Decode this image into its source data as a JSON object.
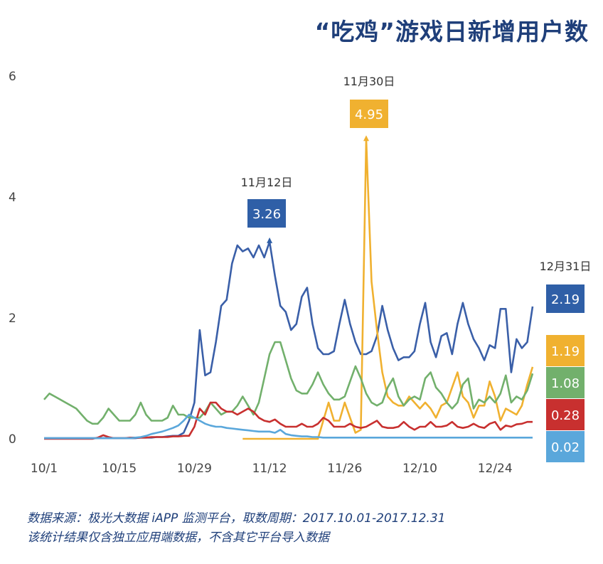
{
  "chart_data": {
    "type": "line",
    "title": "“吃鸡”游戏日新增用户数",
    "ylim": [
      0,
      6
    ],
    "yticks": [
      "0",
      "2",
      "4",
      "6"
    ],
    "xticks": [
      "10/1",
      "10/15",
      "10/29",
      "11/12",
      "11/26",
      "12/10",
      "12/24"
    ],
    "grid": false,
    "x_range": [
      "10/1",
      "12/31"
    ],
    "series": [
      {
        "color": "#3a5fa8",
        "start_index": 0,
        "values": [
          0.01,
          0.01,
          0.01,
          0.01,
          0.01,
          0.01,
          0.01,
          0.01,
          0.01,
          0.01,
          0.01,
          0.01,
          0.01,
          0.01,
          0.01,
          0.01,
          0.01,
          0.01,
          0.02,
          0.02,
          0.02,
          0.03,
          0.03,
          0.04,
          0.05,
          0.05,
          0.1,
          0.3,
          0.6,
          1.8,
          1.05,
          1.1,
          1.6,
          2.2,
          2.3,
          2.9,
          3.2,
          3.1,
          3.15,
          3.0,
          3.2,
          3.0,
          3.26,
          2.7,
          2.2,
          2.1,
          1.8,
          1.9,
          2.35,
          2.5,
          1.9,
          1.5,
          1.4,
          1.4,
          1.45,
          1.9,
          2.3,
          1.9,
          1.6,
          1.4,
          1.4,
          1.45,
          1.7,
          2.2,
          1.8,
          1.5,
          1.3,
          1.35,
          1.35,
          1.45,
          1.9,
          2.25,
          1.6,
          1.35,
          1.7,
          1.75,
          1.4,
          1.9,
          2.25,
          1.9,
          1.65,
          1.5,
          1.3,
          1.55,
          1.5,
          2.15,
          2.15,
          1.1,
          1.65,
          1.5,
          1.6,
          2.19
        ]
      },
      {
        "color": "#f0b130",
        "start_index": 37,
        "values": [
          0,
          0,
          0,
          0,
          0,
          0,
          0,
          0,
          0,
          0,
          0,
          0,
          0,
          0,
          0,
          0.3,
          0.6,
          0.3,
          0.3,
          0.6,
          0.35,
          0.1,
          0.15,
          4.95,
          2.6,
          1.8,
          1.1,
          0.7,
          0.6,
          0.55,
          0.55,
          0.7,
          0.6,
          0.5,
          0.6,
          0.5,
          0.35,
          0.55,
          0.6,
          0.85,
          1.1,
          0.7,
          0.6,
          0.35,
          0.55,
          0.55,
          0.95,
          0.7,
          0.3,
          0.5,
          0.45,
          0.4,
          0.55,
          0.9,
          1.19
        ]
      },
      {
        "color": "#72b06c",
        "start_index": 0,
        "values": [
          0.65,
          0.75,
          0.7,
          0.65,
          0.6,
          0.55,
          0.5,
          0.4,
          0.3,
          0.25,
          0.25,
          0.35,
          0.5,
          0.4,
          0.3,
          0.3,
          0.3,
          0.4,
          0.6,
          0.4,
          0.3,
          0.3,
          0.3,
          0.35,
          0.55,
          0.4,
          0.4,
          0.35,
          0.35,
          0.35,
          0.45,
          0.6,
          0.5,
          0.4,
          0.45,
          0.45,
          0.55,
          0.7,
          0.55,
          0.4,
          0.6,
          1.0,
          1.4,
          1.6,
          1.6,
          1.3,
          1.0,
          0.8,
          0.75,
          0.75,
          0.9,
          1.1,
          0.9,
          0.75,
          0.65,
          0.65,
          0.7,
          0.95,
          1.2,
          1.0,
          0.75,
          0.6,
          0.55,
          0.6,
          0.85,
          1.0,
          0.7,
          0.55,
          0.65,
          0.7,
          0.65,
          1.0,
          1.1,
          0.85,
          0.75,
          0.6,
          0.5,
          0.6,
          0.9,
          1.0,
          0.5,
          0.65,
          0.6,
          0.7,
          0.6,
          0.75,
          1.05,
          0.6,
          0.7,
          0.65,
          0.8,
          1.08
        ]
      },
      {
        "color": "#c8302f",
        "start_index": 0,
        "values": [
          0,
          0,
          0,
          0,
          0,
          0,
          0,
          0,
          0,
          0,
          0.02,
          0.06,
          0.03,
          0.01,
          0.01,
          0.01,
          0.02,
          0.02,
          0.02,
          0.02,
          0.03,
          0.03,
          0.03,
          0.03,
          0.04,
          0.04,
          0.05,
          0.05,
          0.2,
          0.5,
          0.4,
          0.6,
          0.6,
          0.5,
          0.45,
          0.45,
          0.4,
          0.45,
          0.5,
          0.45,
          0.35,
          0.3,
          0.28,
          0.32,
          0.25,
          0.2,
          0.2,
          0.2,
          0.25,
          0.2,
          0.2,
          0.25,
          0.35,
          0.3,
          0.2,
          0.2,
          0.2,
          0.25,
          0.2,
          0.18,
          0.2,
          0.25,
          0.3,
          0.2,
          0.18,
          0.18,
          0.2,
          0.28,
          0.2,
          0.15,
          0.2,
          0.2,
          0.28,
          0.2,
          0.2,
          0.22,
          0.28,
          0.2,
          0.18,
          0.2,
          0.25,
          0.2,
          0.18,
          0.25,
          0.28,
          0.15,
          0.22,
          0.2,
          0.24,
          0.25,
          0.28,
          0.28
        ]
      },
      {
        "color": "#5aa7db",
        "start_index": 0,
        "values": [
          0.01,
          0.01,
          0.01,
          0.01,
          0.01,
          0.01,
          0.01,
          0.01,
          0.01,
          0.01,
          0.01,
          0.01,
          0.01,
          0.01,
          0.01,
          0.01,
          0.01,
          0.02,
          0.03,
          0.05,
          0.08,
          0.1,
          0.12,
          0.15,
          0.18,
          0.22,
          0.3,
          0.4,
          0.35,
          0.3,
          0.25,
          0.22,
          0.2,
          0.2,
          0.18,
          0.17,
          0.16,
          0.15,
          0.14,
          0.13,
          0.12,
          0.12,
          0.12,
          0.1,
          0.15,
          0.08,
          0.06,
          0.05,
          0.04,
          0.04,
          0.03,
          0.03,
          0.02,
          0.02,
          0.02,
          0.02,
          0.02,
          0.02,
          0.02,
          0.02,
          0.02,
          0.02,
          0.02,
          0.02,
          0.02,
          0.02,
          0.02,
          0.02,
          0.02,
          0.02,
          0.02,
          0.02,
          0.02,
          0.02,
          0.02,
          0.02,
          0.02,
          0.02,
          0.02,
          0.02,
          0.02,
          0.02,
          0.02,
          0.02,
          0.02,
          0.02,
          0.02,
          0.02,
          0.02,
          0.02,
          0.02,
          0.02
        ]
      }
    ],
    "annotations": [
      {
        "date": "11月12日",
        "value": "3.26",
        "color": "#2f5fa7",
        "index": 42,
        "y": 3.26
      },
      {
        "date": "11月30日",
        "value": "4.95",
        "color": "#f0b130",
        "index": 60,
        "y": 4.95
      },
      {
        "date": "12月31日",
        "value": "2.19",
        "color": "#2f5fa7",
        "index": 91,
        "y": 2.19
      }
    ],
    "end_labels": [
      {
        "value": "1.19",
        "color": "#f0b130"
      },
      {
        "value": "1.08",
        "color": "#72b06c"
      },
      {
        "value": "0.28",
        "color": "#c8302f"
      },
      {
        "value": "0.02",
        "color": "#5aa7db"
      }
    ]
  },
  "footer": {
    "line1": "数据来源：极光大数据 iAPP 监测平台，取数周期：2017.10.01-2017.12.31",
    "line2": "该统计结果仅含独立应用端数据，不含其它平台导入数据"
  }
}
